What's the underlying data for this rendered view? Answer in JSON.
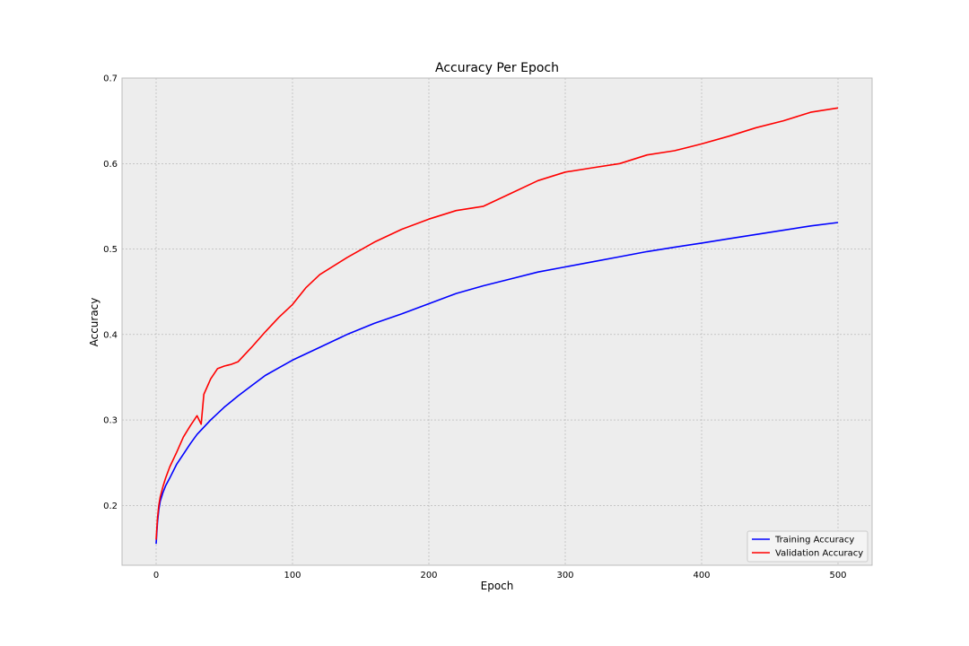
{
  "chart_data": {
    "type": "line",
    "title": "Accuracy Per Epoch",
    "xlabel": "Epoch",
    "ylabel": "Accuracy",
    "xlim": [
      -25,
      525
    ],
    "ylim": [
      0.13,
      0.7
    ],
    "xticks": [
      0,
      100,
      200,
      300,
      400,
      500
    ],
    "xtick_labels": [
      "0",
      "100",
      "200",
      "300",
      "400",
      "500"
    ],
    "yticks": [
      0.2,
      0.3,
      0.4,
      0.5,
      0.6,
      0.7
    ],
    "ytick_labels": [
      "0.2",
      "0.3",
      "0.4",
      "0.5",
      "0.6",
      "0.7"
    ],
    "grid": true,
    "legend_position": "bottom-right",
    "colors": {
      "background": "#ededed",
      "grid": "#b0b0b0",
      "frame": "#bcbcbc"
    },
    "series": [
      {
        "name": "Training Accuracy",
        "color": "#0000ff",
        "x": [
          0,
          1,
          2,
          3,
          5,
          7,
          10,
          15,
          20,
          25,
          30,
          40,
          50,
          60,
          70,
          80,
          90,
          100,
          120,
          140,
          160,
          180,
          200,
          220,
          240,
          260,
          280,
          300,
          320,
          340,
          360,
          380,
          400,
          420,
          440,
          460,
          480,
          500
        ],
        "y": [
          0.155,
          0.18,
          0.195,
          0.205,
          0.215,
          0.223,
          0.232,
          0.248,
          0.26,
          0.272,
          0.283,
          0.3,
          0.315,
          0.328,
          0.34,
          0.352,
          0.361,
          0.37,
          0.385,
          0.4,
          0.413,
          0.424,
          0.436,
          0.448,
          0.457,
          0.465,
          0.473,
          0.479,
          0.485,
          0.491,
          0.497,
          0.502,
          0.507,
          0.512,
          0.517,
          0.522,
          0.527,
          0.531
        ]
      },
      {
        "name": "Validation Accuracy",
        "color": "#ff0000",
        "x": [
          0,
          1,
          2,
          3,
          5,
          7,
          10,
          15,
          20,
          25,
          30,
          33,
          35,
          40,
          45,
          50,
          55,
          60,
          70,
          80,
          90,
          100,
          110,
          120,
          140,
          160,
          180,
          200,
          220,
          240,
          260,
          280,
          300,
          320,
          340,
          360,
          380,
          400,
          420,
          440,
          460,
          480,
          500
        ],
        "y": [
          0.16,
          0.185,
          0.2,
          0.21,
          0.222,
          0.232,
          0.245,
          0.262,
          0.28,
          0.293,
          0.305,
          0.295,
          0.33,
          0.348,
          0.36,
          0.363,
          0.365,
          0.368,
          0.385,
          0.403,
          0.42,
          0.435,
          0.455,
          0.47,
          0.49,
          0.508,
          0.523,
          0.535,
          0.545,
          0.55,
          0.565,
          0.58,
          0.59,
          0.595,
          0.6,
          0.61,
          0.615,
          0.623,
          0.632,
          0.642,
          0.65,
          0.66,
          0.665
        ]
      }
    ]
  }
}
